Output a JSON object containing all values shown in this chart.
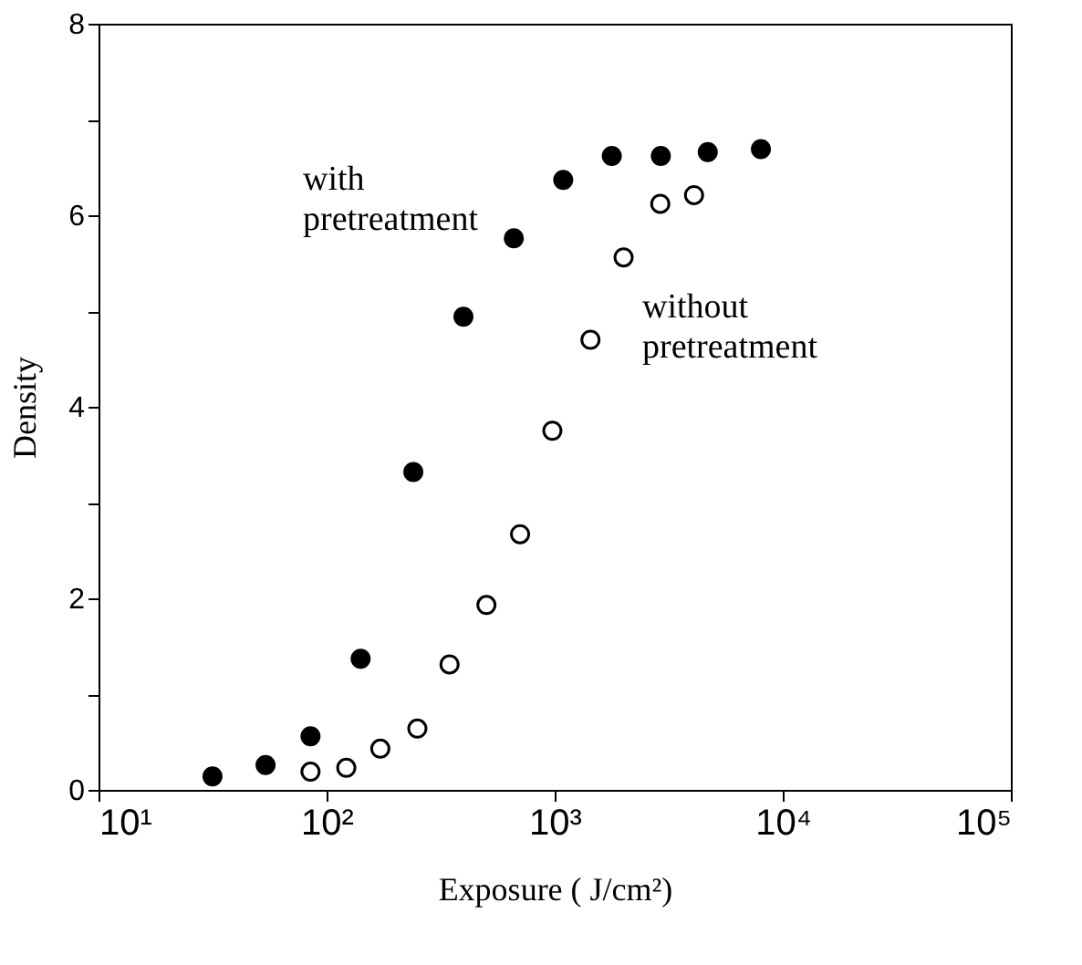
{
  "chart_data": {
    "type": "scatter",
    "xlabel": "Exposure ( J/cm²)",
    "ylabel": "Density",
    "log": "x",
    "xlim": [
      10,
      100000
    ],
    "ylim": [
      0,
      8
    ],
    "xticks": [
      {
        "value": 10,
        "label": "10¹"
      },
      {
        "value": 100,
        "label": "10²"
      },
      {
        "value": 1000,
        "label": "10³"
      },
      {
        "value": 10000,
        "label": "10⁴"
      },
      {
        "value": 100000,
        "label": "10⁵"
      }
    ],
    "yticks": [
      0,
      {
        "value": 1,
        "label": null
      },
      2,
      {
        "value": 3,
        "label": null
      },
      4,
      {
        "value": 5,
        "label": null
      },
      6,
      {
        "value": 7,
        "label": null
      },
      8
    ],
    "grid": false,
    "marker": "circle",
    "series": [
      {
        "name": "with\npretreatment",
        "color": "#000000",
        "x": [
          31.6,
          54,
          85,
          141,
          240,
          398,
          662,
          1090,
          1780,
          2920,
          4690,
          8020
        ],
        "values": [
          0.14,
          0.26,
          0.56,
          1.37,
          3.32,
          4.94,
          5.76,
          6.37,
          6.62,
          6.62,
          6.66,
          6.69
        ]
      },
      {
        "name": "without\npretreatment",
        "color": "#ffffff",
        "x": [
          85,
          122,
          172,
          250,
          346,
          502,
          705,
          977,
          1435,
          2005,
          2904,
          4083
        ],
        "values": [
          0.19,
          0.23,
          0.43,
          0.64,
          1.31,
          1.93,
          2.67,
          3.75,
          4.7,
          5.56,
          6.12,
          6.21
        ]
      }
    ]
  }
}
